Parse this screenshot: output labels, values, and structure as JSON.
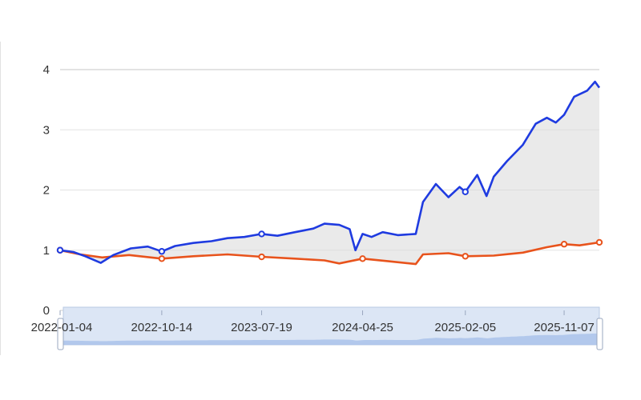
{
  "chart_data": {
    "type": "line",
    "title": "",
    "xlabel": "",
    "ylabel": "",
    "x_ticks": [
      "2022-01-04",
      "2022-10-14",
      "2023-07-19",
      "2024-04-25",
      "2025-02-05",
      "2025-11-07"
    ],
    "y_ticks": [
      "0",
      "1",
      "2",
      "3",
      "4"
    ],
    "ylim": [
      0,
      4
    ],
    "xlim": [
      "2022-01-04",
      "2026-02-13"
    ],
    "grid": "horizontal",
    "legend": "none",
    "shaded_area_between_series": true,
    "has_dataZoom_slider": true,
    "series": [
      {
        "color": "#1f3be0",
        "points": [
          [
            "2022-01-04",
            1.0
          ],
          [
            "2022-02-10",
            0.97
          ],
          [
            "2022-03-15",
            0.9
          ],
          [
            "2022-04-27",
            0.79
          ],
          [
            "2022-06-01",
            0.92
          ],
          [
            "2022-07-20",
            1.03
          ],
          [
            "2022-09-05",
            1.06
          ],
          [
            "2022-10-14",
            0.98
          ],
          [
            "2022-11-20",
            1.07
          ],
          [
            "2023-01-10",
            1.12
          ],
          [
            "2023-03-01",
            1.15
          ],
          [
            "2023-04-15",
            1.2
          ],
          [
            "2023-06-01",
            1.22
          ],
          [
            "2023-07-19",
            1.27
          ],
          [
            "2023-09-01",
            1.24
          ],
          [
            "2023-10-20",
            1.3
          ],
          [
            "2023-12-10",
            1.36
          ],
          [
            "2024-01-10",
            1.44
          ],
          [
            "2024-02-20",
            1.42
          ],
          [
            "2024-03-20",
            1.35
          ],
          [
            "2024-04-05",
            1.0
          ],
          [
            "2024-04-25",
            1.27
          ],
          [
            "2024-05-20",
            1.22
          ],
          [
            "2024-06-20",
            1.3
          ],
          [
            "2024-08-01",
            1.25
          ],
          [
            "2024-09-20",
            1.27
          ],
          [
            "2024-10-10",
            1.8
          ],
          [
            "2024-11-15",
            2.1
          ],
          [
            "2024-12-20",
            1.88
          ],
          [
            "2025-01-20",
            2.05
          ],
          [
            "2025-02-05",
            1.97
          ],
          [
            "2025-03-10",
            2.25
          ],
          [
            "2025-04-05",
            1.9
          ],
          [
            "2025-04-25",
            2.22
          ],
          [
            "2025-06-01",
            2.48
          ],
          [
            "2025-07-15",
            2.75
          ],
          [
            "2025-08-20",
            3.1
          ],
          [
            "2025-09-20",
            3.2
          ],
          [
            "2025-10-15",
            3.12
          ],
          [
            "2025-11-07",
            3.25
          ],
          [
            "2025-12-05",
            3.55
          ],
          [
            "2026-01-10",
            3.65
          ],
          [
            "2026-02-01",
            3.8
          ],
          [
            "2026-02-13",
            3.7
          ]
        ]
      },
      {
        "color": "#e8531c",
        "points": [
          [
            "2022-01-04",
            1.0
          ],
          [
            "2022-03-01",
            0.93
          ],
          [
            "2022-05-01",
            0.88
          ],
          [
            "2022-07-15",
            0.92
          ],
          [
            "2022-10-14",
            0.86
          ],
          [
            "2023-01-10",
            0.9
          ],
          [
            "2023-04-15",
            0.93
          ],
          [
            "2023-07-19",
            0.89
          ],
          [
            "2023-10-20",
            0.86
          ],
          [
            "2024-01-10",
            0.83
          ],
          [
            "2024-02-20",
            0.78
          ],
          [
            "2024-04-25",
            0.86
          ],
          [
            "2024-07-01",
            0.82
          ],
          [
            "2024-09-20",
            0.77
          ],
          [
            "2024-10-10",
            0.93
          ],
          [
            "2024-12-20",
            0.95
          ],
          [
            "2025-02-05",
            0.9
          ],
          [
            "2025-04-25",
            0.91
          ],
          [
            "2025-07-15",
            0.96
          ],
          [
            "2025-09-20",
            1.05
          ],
          [
            "2025-11-07",
            1.1
          ],
          [
            "2025-12-20",
            1.08
          ],
          [
            "2026-02-13",
            1.13
          ]
        ]
      }
    ],
    "markers": [
      {
        "series": 1,
        "x": "2022-01-04"
      },
      {
        "series": 1,
        "x": "2022-10-14"
      },
      {
        "series": 1,
        "x": "2023-07-19"
      },
      {
        "series": 1,
        "x": "2024-04-25"
      },
      {
        "series": 1,
        "x": "2025-02-05"
      },
      {
        "series": 1,
        "x": "2025-11-07"
      },
      {
        "series": 1,
        "x": "2026-02-13"
      },
      {
        "series": 0,
        "x": "2022-01-04"
      },
      {
        "series": 0,
        "x": "2022-10-14"
      },
      {
        "series": 0,
        "x": "2023-07-19"
      },
      {
        "series": 0,
        "x": "2025-02-05"
      }
    ]
  }
}
